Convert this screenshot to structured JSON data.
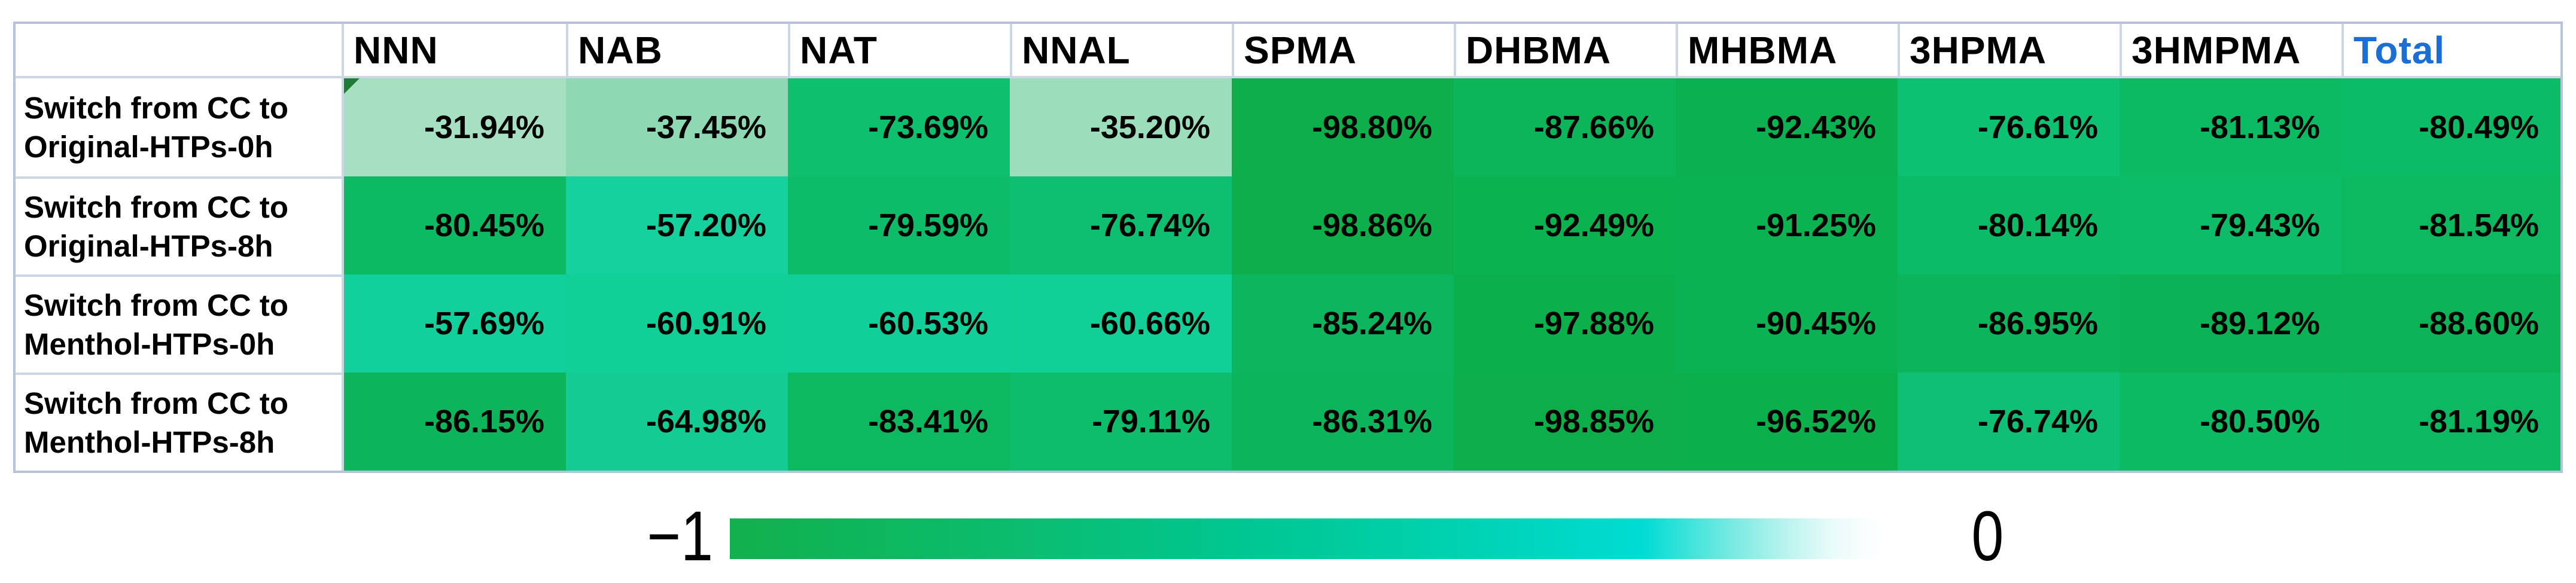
{
  "chart_data": {
    "type": "heatmap",
    "title": "",
    "xlabel": "",
    "ylabel": "",
    "value_range": [
      -1,
      0
    ],
    "columns": [
      "NNN",
      "NAB",
      "NAT",
      "NNAL",
      "SPMA",
      "DHBMA",
      "MHBMA",
      "3HPMA",
      "3HMPMA",
      "Total"
    ],
    "rows": [
      {
        "label": "Switch from CC to Original-HTPs-0h",
        "label_lines": [
          "Switch from CC to",
          "Original-HTPs-0h"
        ],
        "values_pct": [
          -31.94,
          -37.45,
          -73.69,
          -35.2,
          -98.8,
          -87.66,
          -92.43,
          -76.61,
          -81.13,
          -80.49
        ],
        "display": [
          "-31.94%",
          "-37.45%",
          "-73.69%",
          "-35.20%",
          "-98.80%",
          "-87.66%",
          "-92.43%",
          "-76.61%",
          "-81.13%",
          "-80.49%"
        ],
        "colors": [
          "#a6dfc1",
          "#8ed9b3",
          "#0dc06e",
          "#9cddbb",
          "#0caf4a",
          "#0cb55a",
          "#0bb150",
          "#0dc173",
          "#0cba64",
          "#0cbb66"
        ]
      },
      {
        "label": "Switch from CC to Original-HTPs-8h",
        "label_lines": [
          "Switch from CC to",
          "Original-HTPs-8h"
        ],
        "values_pct": [
          -80.45,
          -57.2,
          -79.59,
          -76.74,
          -98.86,
          -92.49,
          -91.25,
          -80.14,
          -79.43,
          -81.54
        ],
        "display": [
          "-80.45%",
          "-57.20%",
          "-79.59%",
          "-76.74%",
          "-98.86%",
          "-92.49%",
          "-91.25%",
          "-80.14%",
          "-79.43%",
          "-81.54%"
        ],
        "colors": [
          "#0cba63",
          "#15d19d",
          "#0cbc69",
          "#0dc071",
          "#0caf49",
          "#0bb250",
          "#0bb252",
          "#0cbb65",
          "#0cbc67",
          "#0cb961"
        ]
      },
      {
        "label": "Switch from CC to Menthol-HTPs-0h",
        "label_lines": [
          "Switch from CC to",
          "Menthol-HTPs-0h"
        ],
        "values_pct": [
          -57.69,
          -60.91,
          -60.53,
          -60.66,
          -85.24,
          -97.88,
          -90.45,
          -86.95,
          -89.12,
          -88.6
        ],
        "display": [
          "-57.69%",
          "-60.91%",
          "-60.53%",
          "-60.66%",
          "-85.24%",
          "-97.88%",
          "-90.45%",
          "-86.95%",
          "-89.12%",
          "-88.60%"
        ],
        "colors": [
          "#11d09c",
          "#10cf97",
          "#10cf98",
          "#10cf97",
          "#0cb65e",
          "#0baf4b",
          "#0bb254",
          "#0cb55c",
          "#0cb356",
          "#0cb457"
        ]
      },
      {
        "label": "Switch from CC to Menthol-HTPs-8h",
        "label_lines": [
          "Switch from CC to",
          "Menthol-HTPs-8h"
        ],
        "values_pct": [
          -86.15,
          -64.98,
          -83.41,
          -79.11,
          -86.31,
          -98.85,
          -96.52,
          -76.74,
          -80.5,
          -81.19
        ],
        "display": [
          "-86.15%",
          "-64.98%",
          "-83.41%",
          "-79.11%",
          "-86.31%",
          "-98.85%",
          "-96.52%",
          "-76.74%",
          "-80.50%",
          "-81.19%"
        ],
        "colors": [
          "#0cb55b",
          "#12cc92",
          "#0cb860",
          "#0dbd6c",
          "#0cb55c",
          "#0bae49",
          "#0bb04d",
          "#0dc075",
          "#0cba64",
          "#0cb962"
        ]
      }
    ],
    "colorbar": {
      "min_label": "−1",
      "max_label": "0",
      "orientation": "horizontal",
      "gradient_stops": [
        [
          "#12b04d",
          0
        ],
        [
          "#0db75d",
          12
        ],
        [
          "#0bbd70",
          25
        ],
        [
          "#00c68f",
          42
        ],
        [
          "#00cfa8",
          57
        ],
        [
          "#00d7c2",
          69
        ],
        [
          "#00dcd4",
          77
        ],
        [
          "#6fe9e0",
          84
        ],
        [
          "#b9f3ee",
          89
        ],
        [
          "#e9fbfa",
          93
        ],
        [
          "#ffffff",
          97
        ],
        [
          "#ffffff",
          100
        ]
      ]
    }
  },
  "colors": {
    "total_header_text": "#1a6ed4",
    "grid_line": "#ccd7e5",
    "outer_border": "#b6c3d8",
    "cell_text": "#000000",
    "corner_flag": "#1d7d35"
  }
}
